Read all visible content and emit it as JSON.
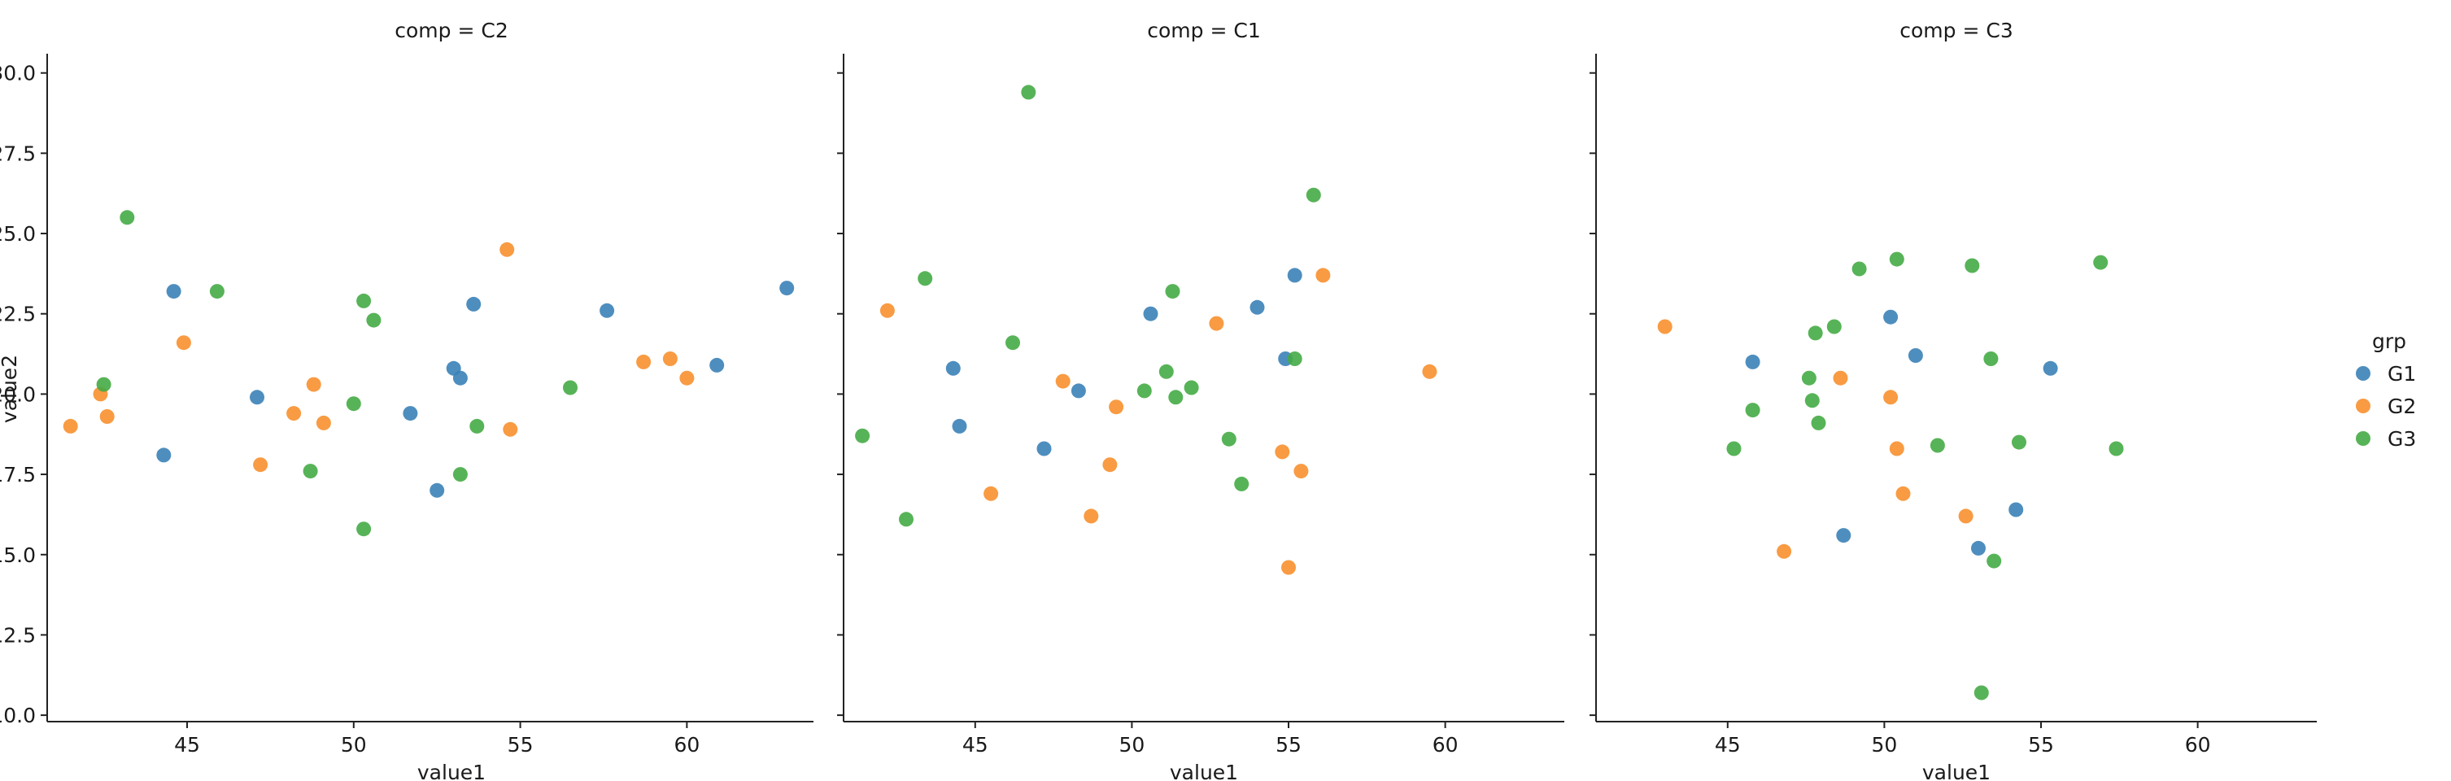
{
  "chart_data": {
    "type": "scatter",
    "facet_variable": "comp",
    "xlabel": "value1",
    "ylabel": "value2",
    "xlim": [
      40.8,
      63.8
    ],
    "ylim": [
      9.8,
      30.6
    ],
    "xticks": [
      45,
      50,
      55,
      60
    ],
    "yticks": [
      10.0,
      12.5,
      15.0,
      17.5,
      20.0,
      22.5,
      25.0,
      27.5,
      30.0
    ],
    "grid": false,
    "legend": {
      "title": "grp",
      "placement": "right",
      "entries": [
        {
          "name": "G1",
          "color": "#3b82b7"
        },
        {
          "name": "G2",
          "color": "#f7902f"
        },
        {
          "name": "G3",
          "color": "#45ab45"
        }
      ]
    },
    "panels": [
      {
        "title": "comp = C2",
        "series": [
          {
            "name": "G1",
            "points": [
              [
                44.6,
                23.2
              ],
              [
                44.3,
                18.1
              ],
              [
                47.1,
                19.9
              ],
              [
                51.7,
                19.4
              ],
              [
                52.5,
                17.0
              ],
              [
                53.0,
                20.8
              ],
              [
                53.2,
                20.5
              ],
              [
                53.6,
                22.8
              ],
              [
                57.6,
                22.6
              ],
              [
                60.9,
                20.9
              ],
              [
                63.0,
                23.3
              ]
            ]
          },
          {
            "name": "G2",
            "points": [
              [
                41.5,
                19.0
              ],
              [
                42.4,
                20.0
              ],
              [
                42.6,
                19.3
              ],
              [
                44.9,
                21.6
              ],
              [
                47.2,
                17.8
              ],
              [
                48.2,
                19.4
              ],
              [
                48.8,
                20.3
              ],
              [
                49.1,
                19.1
              ],
              [
                54.6,
                24.5
              ],
              [
                54.7,
                18.9
              ],
              [
                58.7,
                21.0
              ],
              [
                59.5,
                21.1
              ],
              [
                60.0,
                20.5
              ]
            ]
          },
          {
            "name": "G3",
            "points": [
              [
                42.5,
                20.3
              ],
              [
                43.2,
                25.5
              ],
              [
                45.9,
                23.2
              ],
              [
                48.7,
                17.6
              ],
              [
                50.0,
                19.7
              ],
              [
                50.3,
                22.9
              ],
              [
                50.3,
                15.8
              ],
              [
                50.6,
                22.3
              ],
              [
                53.2,
                17.5
              ],
              [
                53.7,
                19.0
              ],
              [
                56.5,
                20.2
              ]
            ]
          }
        ]
      },
      {
        "title": "comp = C1",
        "series": [
          {
            "name": "G1",
            "points": [
              [
                44.3,
                20.8
              ],
              [
                44.5,
                19.0
              ],
              [
                47.2,
                18.3
              ],
              [
                48.3,
                20.1
              ],
              [
                50.6,
                22.5
              ],
              [
                54.0,
                22.7
              ],
              [
                54.9,
                21.1
              ],
              [
                55.2,
                23.7
              ]
            ]
          },
          {
            "name": "G2",
            "points": [
              [
                42.2,
                22.6
              ],
              [
                45.5,
                16.9
              ],
              [
                47.8,
                20.4
              ],
              [
                48.7,
                16.2
              ],
              [
                49.3,
                17.8
              ],
              [
                49.5,
                19.6
              ],
              [
                52.7,
                22.2
              ],
              [
                54.8,
                18.2
              ],
              [
                55.0,
                14.6
              ],
              [
                55.4,
                17.6
              ],
              [
                56.1,
                23.7
              ],
              [
                59.5,
                20.7
              ]
            ]
          },
          {
            "name": "G3",
            "points": [
              [
                41.4,
                18.7
              ],
              [
                42.8,
                16.1
              ],
              [
                43.4,
                23.6
              ],
              [
                46.2,
                21.6
              ],
              [
                46.7,
                29.4
              ],
              [
                50.4,
                20.1
              ],
              [
                51.1,
                20.7
              ],
              [
                51.3,
                23.2
              ],
              [
                51.4,
                19.9
              ],
              [
                51.9,
                20.2
              ],
              [
                53.1,
                18.6
              ],
              [
                53.5,
                17.2
              ],
              [
                55.2,
                21.1
              ],
              [
                55.8,
                26.2
              ]
            ]
          }
        ]
      },
      {
        "title": "comp = C3",
        "series": [
          {
            "name": "G1",
            "points": [
              [
                45.8,
                21.0
              ],
              [
                48.7,
                15.6
              ],
              [
                50.2,
                22.4
              ],
              [
                51.0,
                21.2
              ],
              [
                53.0,
                15.2
              ],
              [
                54.2,
                16.4
              ],
              [
                55.3,
                20.8
              ]
            ]
          },
          {
            "name": "G2",
            "points": [
              [
                43.0,
                22.1
              ],
              [
                46.8,
                15.1
              ],
              [
                48.6,
                20.5
              ],
              [
                50.2,
                19.9
              ],
              [
                50.4,
                18.3
              ],
              [
                50.6,
                16.9
              ],
              [
                52.6,
                16.2
              ]
            ]
          },
          {
            "name": "G3",
            "points": [
              [
                45.2,
                18.3
              ],
              [
                45.8,
                19.5
              ],
              [
                47.6,
                20.5
              ],
              [
                47.7,
                19.8
              ],
              [
                47.8,
                21.9
              ],
              [
                47.9,
                19.1
              ],
              [
                48.4,
                22.1
              ],
              [
                49.2,
                23.9
              ],
              [
                50.4,
                24.2
              ],
              [
                51.7,
                18.4
              ],
              [
                52.8,
                24.0
              ],
              [
                53.1,
                10.7
              ],
              [
                53.4,
                21.1
              ],
              [
                53.5,
                14.8
              ],
              [
                54.3,
                18.5
              ],
              [
                56.9,
                24.1
              ],
              [
                57.4,
                18.3
              ]
            ]
          }
        ]
      }
    ]
  }
}
